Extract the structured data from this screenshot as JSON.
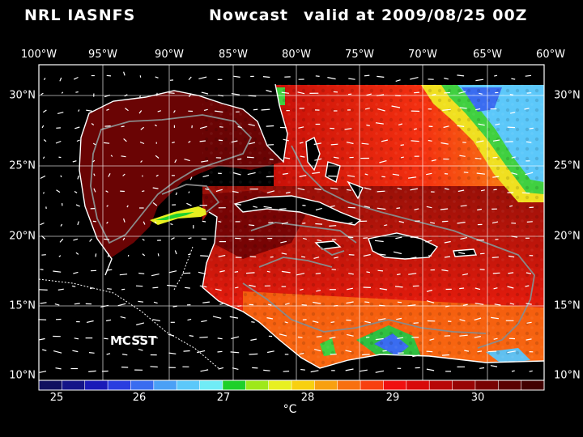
{
  "title": {
    "source": "NRL IASNFS",
    "product": "Nowcast",
    "valid": "valid at 2009/08/25 00Z"
  },
  "lon_labels": [
    "100°W",
    "95°W",
    "90°W",
    "85°W",
    "80°W",
    "75°W",
    "70°W",
    "65°W",
    "60°W"
  ],
  "lat_labels": [
    "30°N",
    "25°N",
    "20°N",
    "15°N",
    "10°N"
  ],
  "overlay_label": "MCSST",
  "colorbar": {
    "tick_labels": [
      "25",
      "26",
      "27",
      "28",
      "29",
      "30"
    ],
    "unit": "°C",
    "colors": [
      "#101060",
      "#141488",
      "#1a1ab8",
      "#2a3ee0",
      "#3a6cf0",
      "#4aa0f6",
      "#5cc8fa",
      "#70ecf6",
      "#1ed02a",
      "#9ee81a",
      "#e8f020",
      "#f8d010",
      "#f8a010",
      "#f87010",
      "#f84010",
      "#f01010",
      "#d80a0a",
      "#b80606",
      "#980404",
      "#780202",
      "#5a0101",
      "#420000"
    ]
  },
  "colors": {
    "background": "#000000",
    "land": "#000000",
    "coastline": "#ffffff",
    "gridline": "#ffffff",
    "isobath": "#8a8a8a",
    "vector": "#ffffff"
  }
}
